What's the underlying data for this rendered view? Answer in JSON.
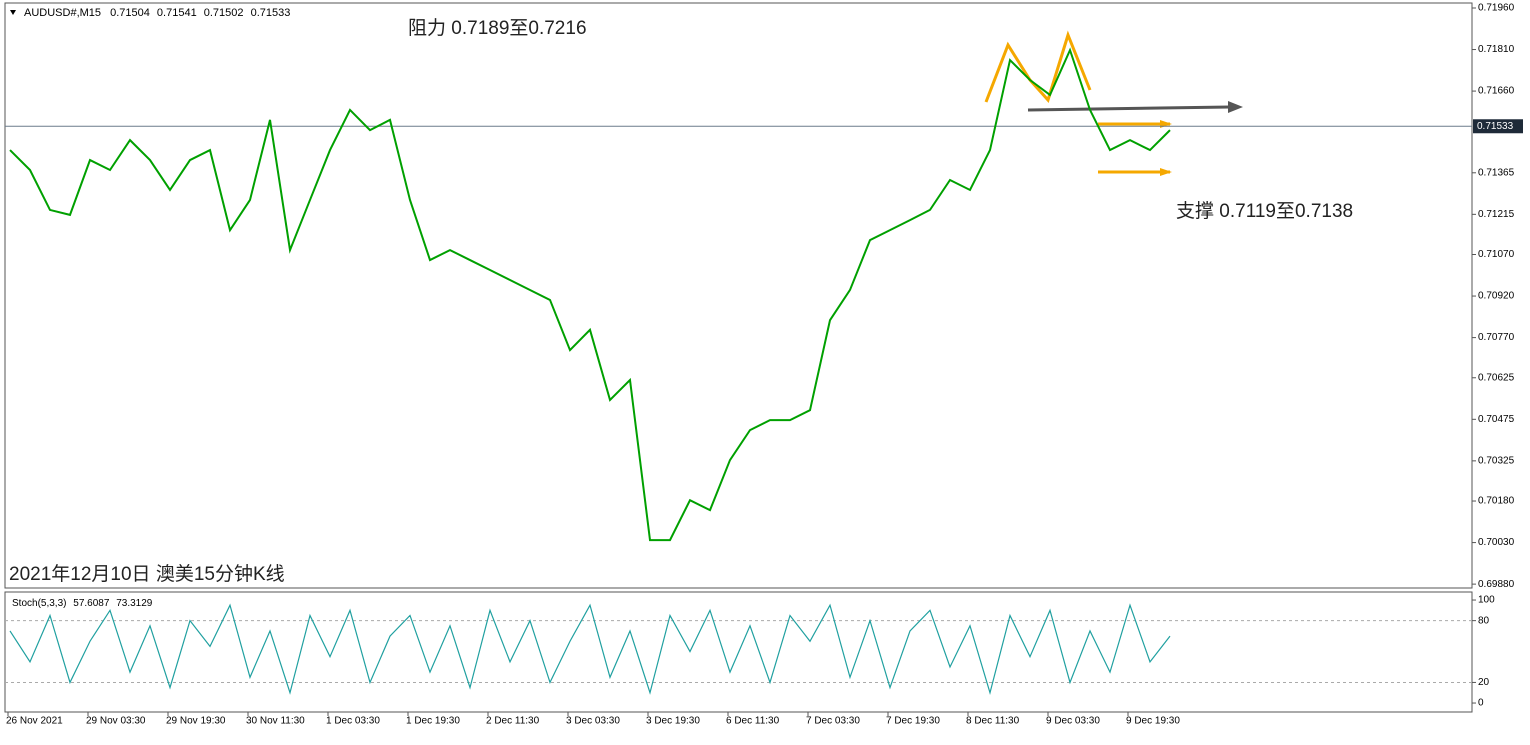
{
  "chart_data": {
    "type": "line",
    "symbol": "AUDUSD#,M15",
    "ohlc": [
      0.71504,
      0.71541,
      0.71502,
      0.71533
    ],
    "caption": "2021年12月10日 澳美15分钟K线",
    "annotations": [
      "阻力 0.7189至0.7216",
      "支撑 0.7119至0.7138"
    ],
    "last_price": 0.71533,
    "xtick_labels": [
      "26 Nov 2021",
      "29 Nov 03:30",
      "29 Nov 19:30",
      "30 Nov 11:30",
      "1 Dec 03:30",
      "1 Dec 19:30",
      "2 Dec 11:30",
      "3 Dec 03:30",
      "3 Dec 19:30",
      "6 Dec 11:30",
      "7 Dec 03:30",
      "7 Dec 19:30",
      "8 Dec 11:30",
      "9 Dec 03:30",
      "9 Dec 19:30"
    ],
    "ylim": [
      0.69866,
      0.71978
    ],
    "yticks": [
      {
        "value": 0.7196,
        "label": "0.71960"
      },
      {
        "value": 0.7181,
        "label": "0.71810"
      },
      {
        "value": 0.7166,
        "label": "0.71660"
      },
      {
        "value": 0.71365,
        "label": "0.71365"
      },
      {
        "value": 0.71215,
        "label": "0.71215"
      },
      {
        "value": 0.7107,
        "label": "0.71070"
      },
      {
        "value": 0.7092,
        "label": "0.70920"
      },
      {
        "value": 0.7077,
        "label": "0.70770"
      },
      {
        "value": 0.70625,
        "label": "0.70625"
      },
      {
        "value": 0.70475,
        "label": "0.70475"
      },
      {
        "value": 0.70325,
        "label": "0.70325"
      },
      {
        "value": 0.7018,
        "label": "0.70180"
      },
      {
        "value": 0.7003,
        "label": "0.70030"
      },
      {
        "value": 0.6988,
        "label": "0.69880"
      }
    ],
    "series": [
      {
        "color": "#00a000",
        "values": [
          0.71447,
          0.71375,
          0.71231,
          0.71213,
          0.71411,
          0.71375,
          0.71483,
          0.71411,
          0.71303,
          0.71411,
          0.71447,
          0.71158,
          0.71267,
          0.71556,
          0.71086,
          0.71267,
          0.71447,
          0.71592,
          0.71519,
          0.71556,
          0.71267,
          0.7105,
          0.71086,
          0.7105,
          0.71014,
          0.70978,
          0.70942,
          0.70906,
          0.70725,
          0.70798,
          0.70545,
          0.70617,
          0.70039,
          0.70039,
          0.70183,
          0.70147,
          0.70328,
          0.70436,
          0.70472,
          0.70472,
          0.70508,
          0.70833,
          0.70942,
          0.71122,
          0.71158,
          0.71194,
          0.71231,
          0.71339,
          0.71303,
          0.71447,
          0.71772,
          0.717,
          0.71646,
          0.71808,
          0.71592,
          0.71447,
          0.71483,
          0.71447,
          0.71519
        ]
      }
    ],
    "stoch": {
      "name": "Stoch(5,3,3)",
      "readings": [
        57.6087,
        73.3129
      ],
      "color": "#20a0a0",
      "ylim": [
        -8.7,
        107.8
      ],
      "yticks": [
        100,
        80,
        20,
        0
      ],
      "grid": [
        80,
        20
      ],
      "values": [
        70,
        40,
        85,
        20,
        60,
        90,
        30,
        75,
        15,
        80,
        55,
        95,
        25,
        70,
        10,
        85,
        45,
        90,
        20,
        65,
        85,
        30,
        75,
        15,
        90,
        40,
        80,
        20,
        60,
        95,
        25,
        70,
        10,
        85,
        50,
        90,
        30,
        75,
        20,
        85,
        60,
        95,
        25,
        80,
        15,
        70,
        90,
        35,
        75,
        10,
        85,
        45,
        90,
        20,
        70,
        30,
        95,
        40,
        65
      ]
    }
  }
}
